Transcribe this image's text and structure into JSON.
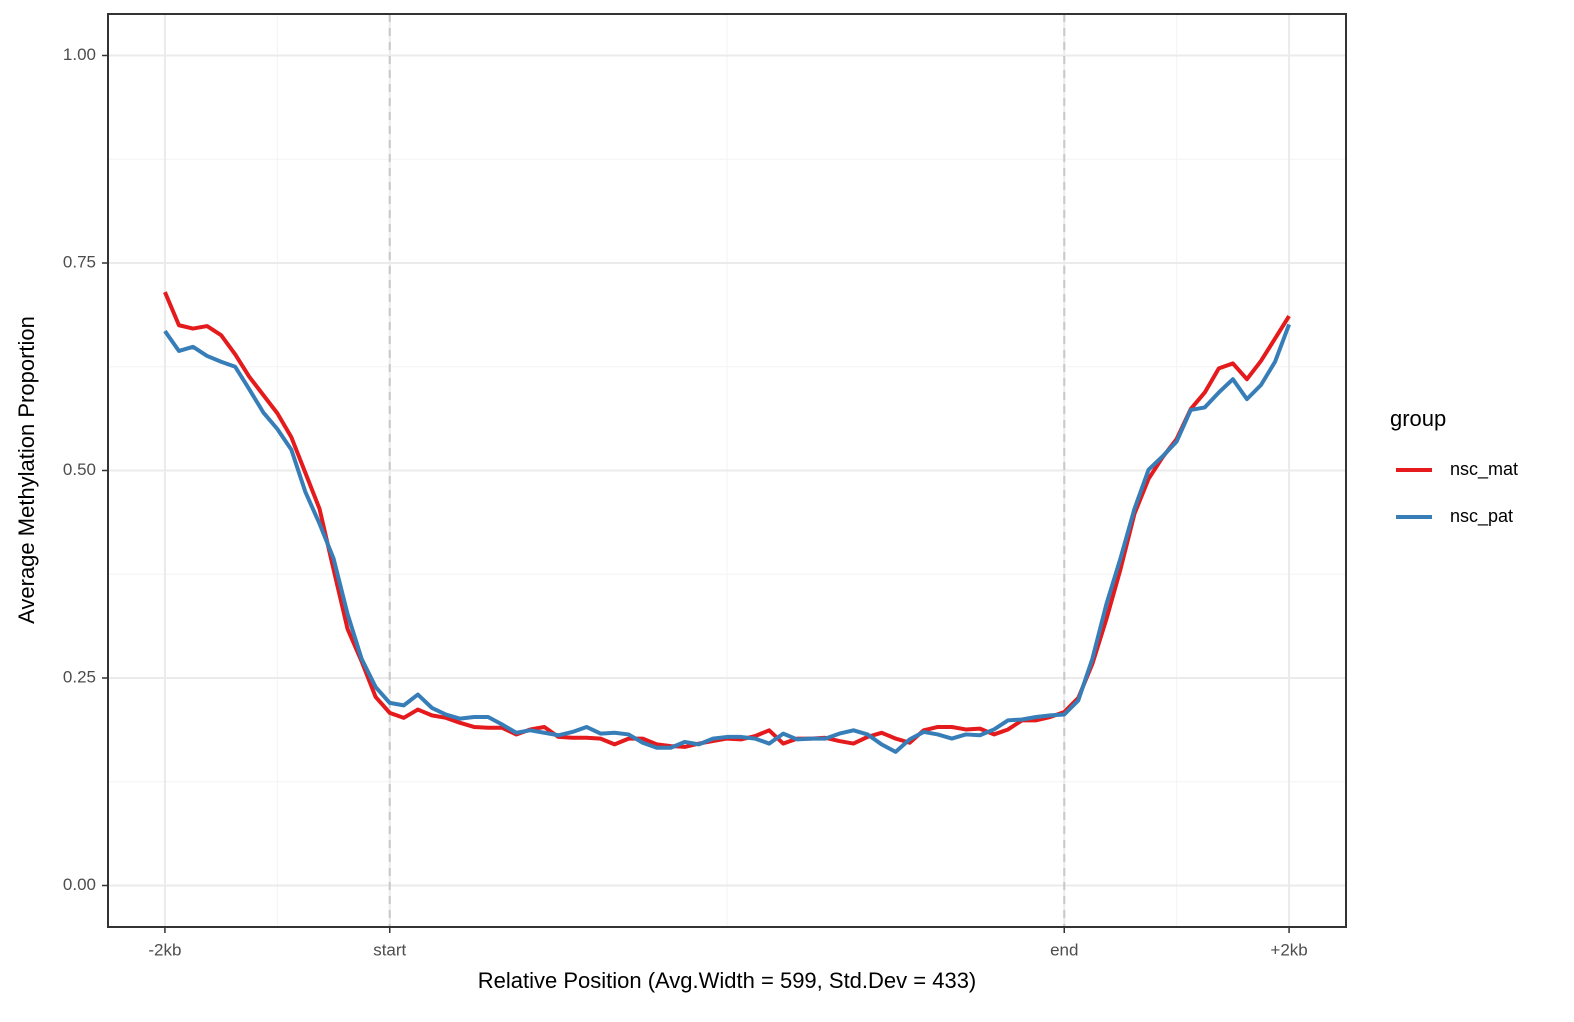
{
  "chart_data": {
    "type": "line",
    "x_label": "Relative Position (Avg.Width = 599, Std.Dev = 433)",
    "y_label": "Average Methylation Proportion",
    "x": [
      0,
      1,
      2,
      3,
      4,
      5,
      6,
      7,
      8,
      9,
      10,
      11,
      12,
      13,
      14,
      15,
      16,
      17,
      18,
      19,
      20,
      21,
      22,
      23,
      24,
      25,
      26,
      27,
      28,
      29,
      30,
      31,
      32,
      33,
      34,
      35,
      36,
      37,
      38,
      39,
      40,
      41,
      42,
      43,
      44,
      45,
      46,
      47,
      48,
      49,
      50,
      51,
      52,
      53,
      54,
      55,
      56,
      57,
      58,
      59,
      60,
      61,
      62,
      63,
      64,
      65,
      66,
      67,
      68,
      69,
      70,
      71,
      72,
      73,
      74,
      75,
      76,
      77,
      78,
      79,
      80
    ],
    "series": [
      {
        "name": "nsc_mat",
        "color": "#e41a1c",
        "values": [
          0.715,
          0.675,
          0.671,
          0.674,
          0.663,
          0.64,
          0.613,
          0.591,
          0.569,
          0.54,
          0.497,
          0.454,
          0.381,
          0.309,
          0.27,
          0.227,
          0.208,
          0.202,
          0.212,
          0.205,
          0.202,
          0.196,
          0.191,
          0.19,
          0.19,
          0.182,
          0.188,
          0.191,
          0.179,
          0.178,
          0.178,
          0.177,
          0.17,
          0.177,
          0.177,
          0.17,
          0.168,
          0.167,
          0.171,
          0.174,
          0.177,
          0.176,
          0.18,
          0.187,
          0.171,
          0.177,
          0.177,
          0.178,
          0.174,
          0.171,
          0.179,
          0.184,
          0.177,
          0.172,
          0.187,
          0.191,
          0.191,
          0.188,
          0.189,
          0.182,
          0.188,
          0.199,
          0.199,
          0.203,
          0.209,
          0.226,
          0.267,
          0.321,
          0.381,
          0.448,
          0.49,
          0.516,
          0.538,
          0.574,
          0.594,
          0.623,
          0.629,
          0.61,
          0.632,
          0.659,
          0.686
        ]
      },
      {
        "name": "nsc_pat",
        "color": "#377eb8",
        "values": [
          0.668,
          0.644,
          0.649,
          0.638,
          0.631,
          0.625,
          0.598,
          0.57,
          0.55,
          0.525,
          0.474,
          0.436,
          0.394,
          0.327,
          0.273,
          0.239,
          0.22,
          0.217,
          0.23,
          0.214,
          0.206,
          0.201,
          0.203,
          0.203,
          0.194,
          0.184,
          0.187,
          0.184,
          0.181,
          0.185,
          0.191,
          0.183,
          0.184,
          0.182,
          0.172,
          0.166,
          0.166,
          0.173,
          0.17,
          0.177,
          0.179,
          0.179,
          0.177,
          0.171,
          0.183,
          0.176,
          0.177,
          0.177,
          0.183,
          0.187,
          0.182,
          0.17,
          0.161,
          0.176,
          0.185,
          0.182,
          0.177,
          0.182,
          0.181,
          0.188,
          0.199,
          0.2,
          0.203,
          0.205,
          0.206,
          0.223,
          0.273,
          0.339,
          0.394,
          0.454,
          0.501,
          0.517,
          0.535,
          0.573,
          0.576,
          0.594,
          0.61,
          0.586,
          0.603,
          0.631,
          0.676
        ]
      }
    ],
    "xlim": [
      -4.05,
      84.05
    ],
    "xticks": [
      {
        "value": 0,
        "label": "-2kb"
      },
      {
        "value": 16,
        "label": "start"
      },
      {
        "value": 64,
        "label": "end"
      },
      {
        "value": 80,
        "label": "+2kb"
      }
    ],
    "ylim": [
      -0.05,
      1.05
    ],
    "yticks": [
      {
        "value": 0,
        "label": "0.00"
      },
      {
        "value": 0.25,
        "label": "0.25"
      },
      {
        "value": 0.5,
        "label": "0.50"
      },
      {
        "value": 0.75,
        "label": "0.75"
      },
      {
        "value": 1,
        "label": "1.00"
      }
    ],
    "vlines": [
      16,
      64
    ],
    "grid": true,
    "legend": {
      "title": "group",
      "position": "right"
    }
  }
}
